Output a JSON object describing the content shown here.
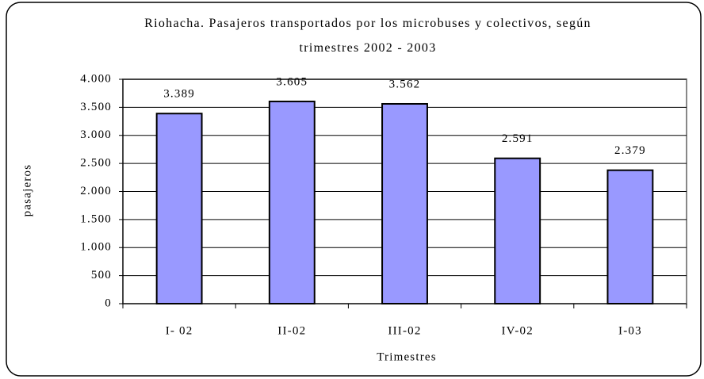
{
  "chart_data": {
    "type": "bar",
    "title": "Riohacha. Pasajeros transportados por los microbuses y colectivos, según trimestres 2002 - 2003",
    "categories": [
      "I- 02",
      "II-02",
      "III-02",
      "IV-02",
      "I-03"
    ],
    "values": [
      3389,
      3605,
      3562,
      2591,
      2379
    ],
    "value_labels": [
      "3.389",
      "3.605",
      "3.562",
      "2.591",
      "2.379"
    ],
    "color": "#9999ff",
    "xlabel": "Trimestres",
    "ylabel": "pasajeros",
    "ylim": [
      0,
      4000
    ],
    "yticks": [
      0,
      500,
      {
        "value": 1000,
        "label": "1.000"
      },
      {
        "value": 1500,
        "label": "1.500"
      },
      {
        "value": 2000,
        "label": "2.000"
      },
      {
        "value": 2500,
        "label": "2.500"
      },
      {
        "value": 3000,
        "label": "3.000"
      },
      {
        "value": 3500,
        "label": "3.500"
      },
      {
        "value": 4000,
        "label": "4.000"
      }
    ],
    "grid": true
  }
}
